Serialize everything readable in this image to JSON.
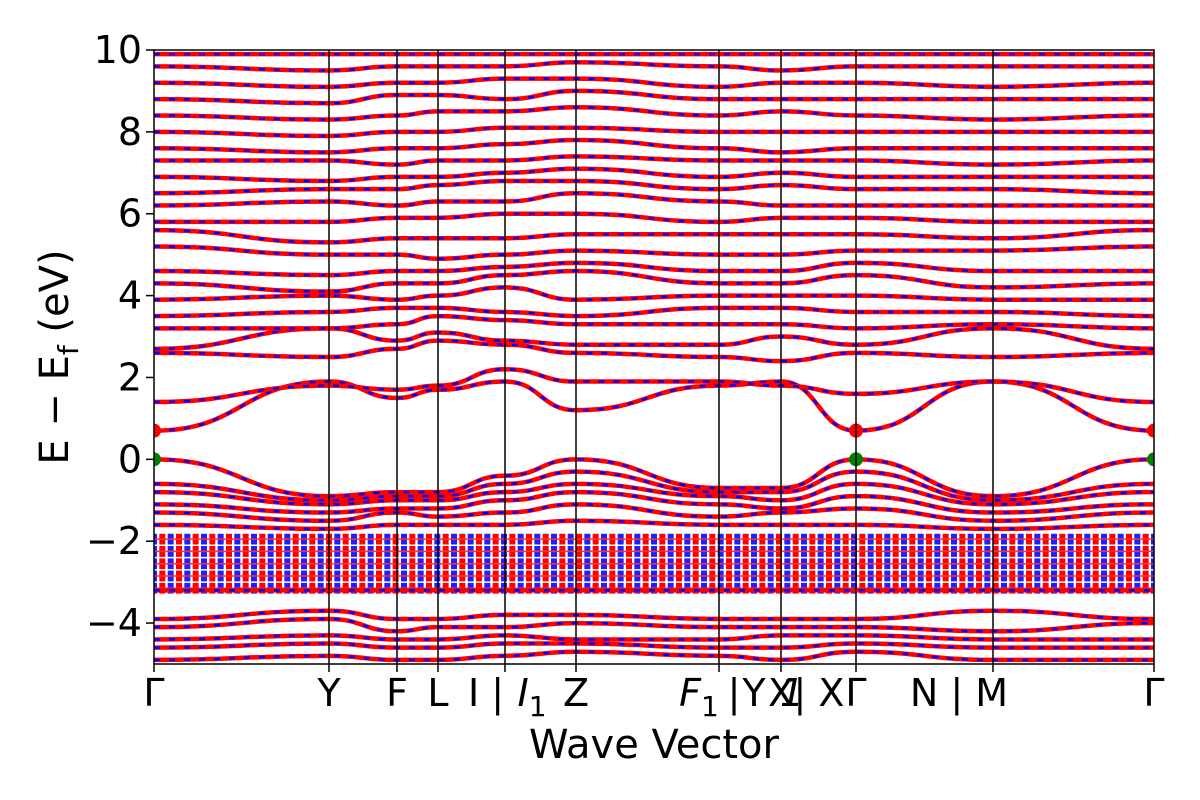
{
  "chart_data": {
    "type": "line",
    "xlabel": "Wave Vector",
    "ylabel_main": "E − E",
    "ylabel_sub": "f",
    "ylabel_unit": " (eV)",
    "ylim": [
      -5,
      10
    ],
    "yticks": [
      -4,
      -2,
      0,
      2,
      4,
      6,
      8,
      10
    ],
    "ytick_labels": [
      "−4",
      "−2",
      "0",
      "2",
      "4",
      "6",
      "8",
      "10"
    ],
    "xlim": [
      0,
      1
    ],
    "kpath_positions": [
      0,
      0.175,
      0.243,
      0.284,
      0.351,
      0.422,
      0.565,
      0.627,
      0.702,
      0.839,
      1.0
    ],
    "kpath_labels": [
      {
        "pos": 0.0,
        "text": "Γ"
      },
      {
        "pos": 0.175,
        "text": "Y"
      },
      {
        "pos": 0.243,
        "text": "F"
      },
      {
        "pos": 0.284,
        "text": "L"
      },
      {
        "pos": 0.332,
        "text": "I | "
      },
      {
        "pos": 0.378,
        "text": "I",
        "sub": "1",
        "italic": true
      },
      {
        "pos": 0.422,
        "text": "Z"
      },
      {
        "pos": 0.545,
        "text": "F",
        "sub": "1",
        "italic": true
      },
      {
        "pos": 0.58,
        "text": " | "
      },
      {
        "pos": 0.6,
        "text": "Y"
      },
      {
        "pos": 0.627,
        "text": "X"
      },
      {
        "pos": 0.638,
        "text": "1",
        "italic": true
      },
      {
        "pos": 0.665,
        "text": " | X"
      },
      {
        "pos": 0.702,
        "text": "Γ"
      },
      {
        "pos": 0.805,
        "text": "N | M"
      },
      {
        "pos": 1.0,
        "text": "Γ"
      }
    ],
    "series": [
      {
        "style": "solid",
        "color": "#ff0000"
      },
      {
        "style": "dashed",
        "color": "#0000ff"
      }
    ],
    "band_edges": {
      "valence_max": 0.0,
      "conduction_min": 0.7,
      "vbm_color": "#008000",
      "cbm_color": "#ff0000",
      "marker_x": [
        0.0,
        0.702,
        1.0
      ]
    },
    "bands": [
      [
        -4.9,
        -4.8,
        -4.9,
        -4.9,
        -4.8,
        -4.7,
        -4.8,
        -4.9,
        -4.7,
        -4.9,
        -4.9
      ],
      [
        -4.6,
        -4.5,
        -4.6,
        -4.6,
        -4.5,
        -4.5,
        -4.6,
        -4.6,
        -4.5,
        -4.6,
        -4.6
      ],
      [
        -4.4,
        -4.3,
        -4.4,
        -4.4,
        -4.3,
        -4.4,
        -4.4,
        -4.3,
        -4.3,
        -4.4,
        -4.4
      ],
      [
        -4.1,
        -3.9,
        -4.2,
        -4.1,
        -4.1,
        -4.0,
        -4.1,
        -4.1,
        -4.1,
        -4.2,
        -4.0
      ],
      [
        -3.9,
        -3.7,
        -3.9,
        -3.9,
        -3.8,
        -3.8,
        -3.9,
        -3.9,
        -3.9,
        -3.7,
        -3.9
      ],
      [
        -3.2,
        -3.2,
        -3.2,
        -3.2,
        -3.2,
        -3.2,
        -3.2,
        -3.2,
        -3.2,
        -3.2,
        -3.2
      ],
      [
        -1.6,
        -1.7,
        -1.6,
        -1.6,
        -1.6,
        -1.5,
        -1.6,
        -1.6,
        -1.6,
        -1.7,
        -1.6
      ],
      [
        -1.3,
        -1.5,
        -1.3,
        -1.4,
        -1.3,
        -1.1,
        -1.4,
        -1.3,
        -1.2,
        -1.5,
        -1.3
      ],
      [
        -1.1,
        -1.3,
        -1.2,
        -1.2,
        -1.0,
        -0.8,
        -1.1,
        -1.2,
        -0.9,
        -1.3,
        -1.1
      ],
      [
        -0.8,
        -1.1,
        -1.0,
        -1.0,
        -0.8,
        -0.6,
        -0.9,
        -1.0,
        -0.6,
        -1.1,
        -0.8
      ],
      [
        -0.6,
        -1.0,
        -0.9,
        -0.9,
        -0.6,
        -0.3,
        -0.8,
        -0.8,
        -0.3,
        -1.0,
        -0.6
      ],
      [
        0.0,
        -0.9,
        -0.8,
        -0.8,
        -0.4,
        0.0,
        -0.7,
        -0.7,
        0.0,
        -0.9,
        0.0
      ],
      [
        0.7,
        1.9,
        1.5,
        1.7,
        1.9,
        1.2,
        1.8,
        1.9,
        0.7,
        1.9,
        0.7
      ],
      [
        1.4,
        1.8,
        1.7,
        1.8,
        2.2,
        1.9,
        1.9,
        1.8,
        1.6,
        1.9,
        1.4
      ],
      [
        2.6,
        2.5,
        2.7,
        2.9,
        2.8,
        2.6,
        2.5,
        2.4,
        2.6,
        2.5,
        2.6
      ],
      [
        2.7,
        3.2,
        2.9,
        3.1,
        2.9,
        2.8,
        2.8,
        3.0,
        2.8,
        3.2,
        2.7
      ],
      [
        3.2,
        3.2,
        3.3,
        3.5,
        3.4,
        3.3,
        3.3,
        3.3,
        3.2,
        3.3,
        3.2
      ],
      [
        3.5,
        3.6,
        3.7,
        3.7,
        3.6,
        3.5,
        3.7,
        3.7,
        3.6,
        3.6,
        3.5
      ],
      [
        3.9,
        4.0,
        3.9,
        4.0,
        4.2,
        3.9,
        4.0,
        4.0,
        4.0,
        3.9,
        3.9
      ],
      [
        4.3,
        4.1,
        4.3,
        4.3,
        4.5,
        4.6,
        4.3,
        4.3,
        4.5,
        4.2,
        4.3
      ],
      [
        4.6,
        4.5,
        4.6,
        4.6,
        4.7,
        4.8,
        4.6,
        4.6,
        4.8,
        4.6,
        4.6
      ],
      [
        5.2,
        5.0,
        5.0,
        4.9,
        5.0,
        5.1,
        5.0,
        5.0,
        5.1,
        5.1,
        5.2
      ],
      [
        5.6,
        5.3,
        5.4,
        5.4,
        5.4,
        5.5,
        5.5,
        5.5,
        5.5,
        5.4,
        5.6
      ],
      [
        5.8,
        5.8,
        5.9,
        5.9,
        6.0,
        6.0,
        5.8,
        5.9,
        5.9,
        5.8,
        5.8
      ],
      [
        6.2,
        6.3,
        6.2,
        6.3,
        6.3,
        6.5,
        6.3,
        6.2,
        6.2,
        6.2,
        6.2
      ],
      [
        6.5,
        6.6,
        6.6,
        6.7,
        6.8,
        6.8,
        6.6,
        6.7,
        6.6,
        6.6,
        6.5
      ],
      [
        6.9,
        6.8,
        6.9,
        6.9,
        7.0,
        7.1,
        6.9,
        7.0,
        6.9,
        6.9,
        6.9
      ],
      [
        7.3,
        7.3,
        7.2,
        7.3,
        7.3,
        7.4,
        7.3,
        7.3,
        7.3,
        7.2,
        7.3
      ],
      [
        7.6,
        7.5,
        7.6,
        7.6,
        7.7,
        7.8,
        7.6,
        7.5,
        7.6,
        7.6,
        7.6
      ],
      [
        8.0,
        7.9,
        8.0,
        8.0,
        8.1,
        8.1,
        8.0,
        8.0,
        8.0,
        8.0,
        8.0
      ],
      [
        8.4,
        8.3,
        8.4,
        8.5,
        8.5,
        8.6,
        8.4,
        8.5,
        8.4,
        8.3,
        8.4
      ],
      [
        8.8,
        8.7,
        8.9,
        8.9,
        8.8,
        9.0,
        8.8,
        8.8,
        8.8,
        8.8,
        8.8
      ],
      [
        9.2,
        9.1,
        9.2,
        9.2,
        9.3,
        9.3,
        9.1,
        9.2,
        9.2,
        9.1,
        9.2
      ],
      [
        9.6,
        9.5,
        9.6,
        9.6,
        9.6,
        9.7,
        9.6,
        9.5,
        9.6,
        9.6,
        9.6
      ],
      [
        9.9,
        9.9,
        9.9,
        9.9,
        9.9,
        9.9,
        9.9,
        9.9,
        9.9,
        9.9,
        9.9
      ]
    ],
    "dense_band_range": [
      -3.3,
      -1.8
    ],
    "grid": false,
    "legend": "none"
  }
}
